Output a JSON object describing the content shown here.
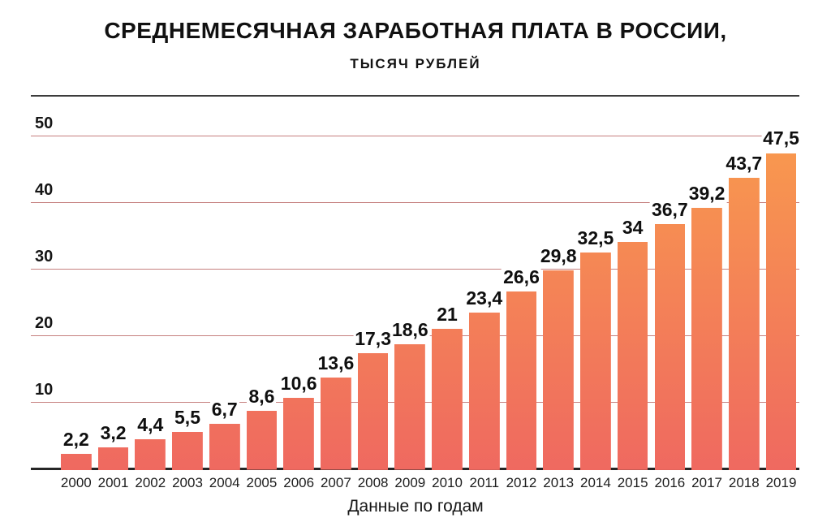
{
  "page": {
    "background": "#ffffff"
  },
  "chart_data": {
    "type": "bar",
    "title": "СРЕДНЕМЕСЯЧНАЯ ЗАРАБОТНАЯ ПЛАТА В РОССИИ,",
    "subtitle": "ТЫСЯЧ РУБЛЕЙ",
    "xlabel": "Данные по годам",
    "ylabel": "",
    "categories": [
      "2000",
      "2001",
      "2002",
      "2003",
      "2004",
      "2005",
      "2006",
      "2007",
      "2008",
      "2009",
      "2010",
      "2011",
      "2012",
      "2013",
      "2014",
      "2015",
      "2016",
      "2017",
      "2018",
      "2019"
    ],
    "values": [
      2.2,
      3.2,
      4.4,
      5.5,
      6.7,
      8.6,
      10.6,
      13.6,
      17.3,
      18.6,
      21,
      23.4,
      26.6,
      29.8,
      32.5,
      34,
      36.7,
      39.2,
      43.7,
      47.5
    ],
    "value_labels": [
      "2,2",
      "3,2",
      "4,4",
      "5,5",
      "6,7",
      "8,6",
      "10,6",
      "13,6",
      "17,3",
      "18,6",
      "21",
      "23,4",
      "26,6",
      "29,8",
      "32,5",
      "34",
      "36,7",
      "39,2",
      "43,7",
      "47,5"
    ],
    "yticks": [
      10,
      20,
      30,
      40,
      50
    ],
    "ylim": [
      0,
      52
    ],
    "grid": true,
    "legend": false,
    "colors": {
      "bar_gradient_top": "#f8974f",
      "bar_gradient_bottom": "#ef6960",
      "gridline": "#c57f7e",
      "axis": "#262626",
      "divider": "#3c3c3c",
      "text": "#111111"
    }
  }
}
